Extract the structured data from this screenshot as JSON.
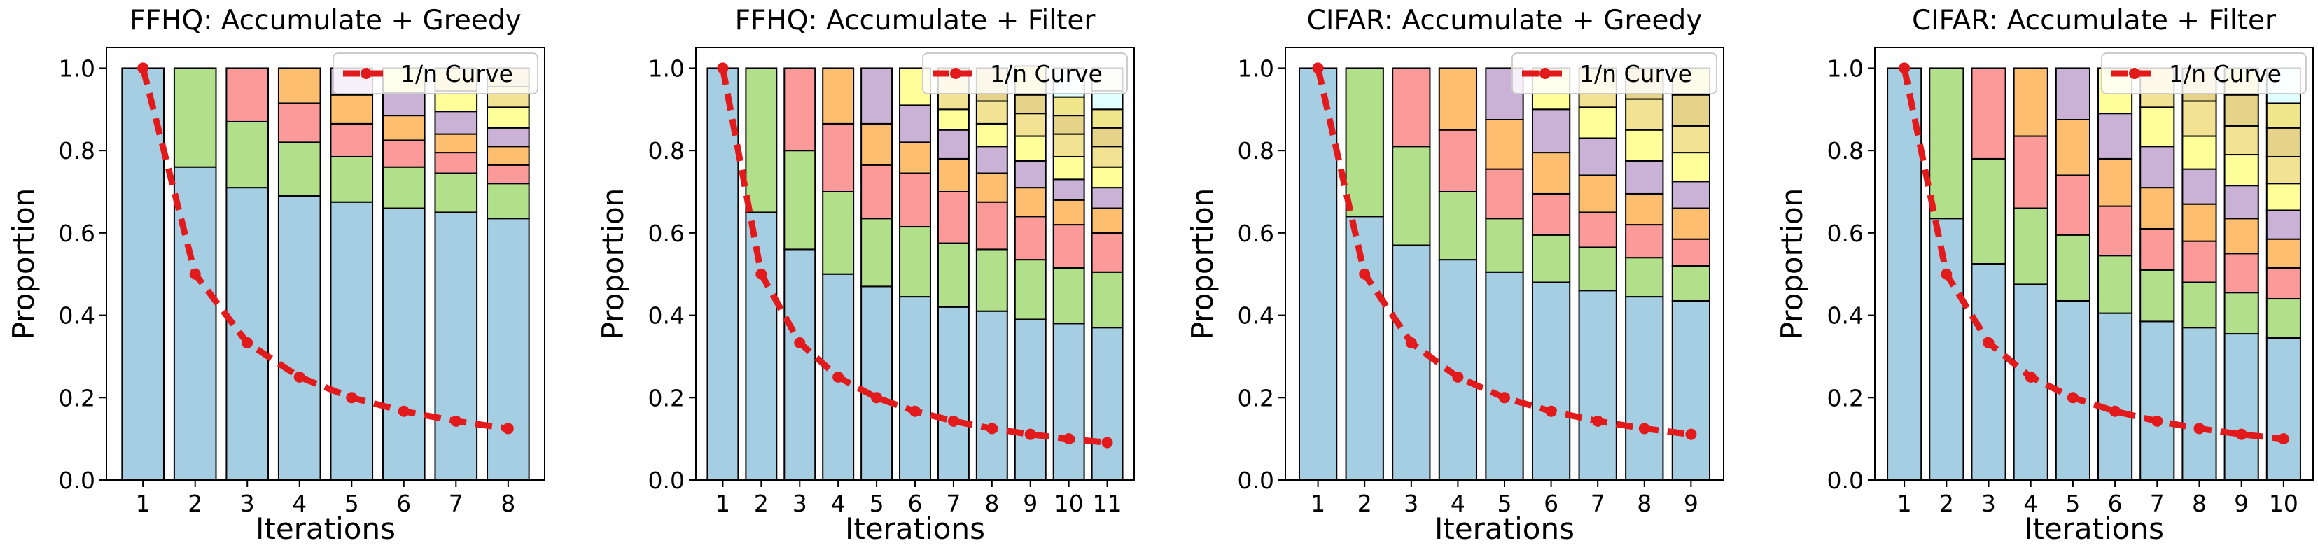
{
  "figure": {
    "palette": [
      "#a6cee3",
      "#b2df8a",
      "#fb9a99",
      "#fdbf6f",
      "#cab2d6",
      "#ffff99",
      "#f2e394",
      "#e6d38a",
      "#f0e68c",
      "#e0ffff",
      "#f5f5dc"
    ],
    "curve_color": "#e31a1c"
  },
  "chart_data": [
    {
      "type": "stacked-bar",
      "title": "FFHQ: Accumulate + Greedy",
      "xlabel": "Iterations",
      "ylabel": "Proportion",
      "ylim": [
        0,
        1.05
      ],
      "yticks": [
        "0.0",
        "0.2",
        "0.4",
        "0.6",
        "0.8",
        "1.0"
      ],
      "categories": [
        "1",
        "2",
        "3",
        "4",
        "5",
        "6",
        "7",
        "8"
      ],
      "stacks": [
        [
          1.0
        ],
        [
          0.76,
          0.24
        ],
        [
          0.71,
          0.16,
          0.13
        ],
        [
          0.69,
          0.13,
          0.095,
          0.085
        ],
        [
          0.675,
          0.11,
          0.08,
          0.07,
          0.065
        ],
        [
          0.66,
          0.1,
          0.065,
          0.06,
          0.055,
          0.06
        ],
        [
          0.65,
          0.095,
          0.05,
          0.045,
          0.055,
          0.05,
          0.055
        ],
        [
          0.635,
          0.085,
          0.045,
          0.045,
          0.045,
          0.05,
          0.05,
          0.045
        ]
      ],
      "curve": {
        "name": "1/n Curve",
        "values": [
          1.0,
          0.5,
          0.333,
          0.25,
          0.2,
          0.167,
          0.143,
          0.125
        ]
      },
      "legend": "top-right"
    },
    {
      "type": "stacked-bar",
      "title": "FFHQ: Accumulate + Filter",
      "xlabel": "Iterations",
      "ylabel": "Proportion",
      "ylim": [
        0,
        1.05
      ],
      "yticks": [
        "0.0",
        "0.2",
        "0.4",
        "0.6",
        "0.8",
        "1.0"
      ],
      "categories": [
        "1",
        "2",
        "3",
        "4",
        "5",
        "6",
        "7",
        "8",
        "9",
        "10",
        "11"
      ],
      "stacks": [
        [
          1.0
        ],
        [
          0.65,
          0.35
        ],
        [
          0.56,
          0.24,
          0.2
        ],
        [
          0.5,
          0.2,
          0.165,
          0.135
        ],
        [
          0.47,
          0.165,
          0.13,
          0.1,
          0.135
        ],
        [
          0.445,
          0.17,
          0.13,
          0.075,
          0.09,
          0.09
        ],
        [
          0.42,
          0.155,
          0.125,
          0.08,
          0.07,
          0.05,
          0.1
        ],
        [
          0.41,
          0.15,
          0.115,
          0.07,
          0.065,
          0.055,
          0.055,
          0.08
        ],
        [
          0.39,
          0.145,
          0.105,
          0.07,
          0.065,
          0.06,
          0.055,
          0.045,
          0.07
        ],
        [
          0.38,
          0.135,
          0.105,
          0.06,
          0.05,
          0.055,
          0.055,
          0.045,
          0.045,
          0.07
        ],
        [
          0.37,
          0.135,
          0.095,
          0.06,
          0.05,
          0.05,
          0.05,
          0.045,
          0.045,
          0.045,
          0.055
        ]
      ],
      "curve": {
        "name": "1/n Curve",
        "values": [
          1.0,
          0.5,
          0.333,
          0.25,
          0.2,
          0.167,
          0.143,
          0.125,
          0.111,
          0.1,
          0.091
        ]
      },
      "legend": "top-right"
    },
    {
      "type": "stacked-bar",
      "title": "CIFAR: Accumulate + Greedy",
      "xlabel": "Iterations",
      "ylabel": "Proportion",
      "ylim": [
        0,
        1.05
      ],
      "yticks": [
        "0.0",
        "0.2",
        "0.4",
        "0.6",
        "0.8",
        "1.0"
      ],
      "categories": [
        "1",
        "2",
        "3",
        "4",
        "5",
        "6",
        "7",
        "8",
        "9"
      ],
      "stacks": [
        [
          1.0
        ],
        [
          0.64,
          0.36
        ],
        [
          0.57,
          0.24,
          0.19
        ],
        [
          0.535,
          0.165,
          0.15,
          0.15
        ],
        [
          0.505,
          0.13,
          0.12,
          0.12,
          0.125
        ],
        [
          0.48,
          0.115,
          0.1,
          0.1,
          0.105,
          0.1
        ],
        [
          0.46,
          0.105,
          0.085,
          0.09,
          0.09,
          0.075,
          0.095
        ],
        [
          0.445,
          0.095,
          0.08,
          0.075,
          0.08,
          0.075,
          0.075,
          0.075
        ],
        [
          0.435,
          0.085,
          0.065,
          0.075,
          0.065,
          0.07,
          0.065,
          0.075,
          0.065
        ]
      ],
      "curve": {
        "name": "1/n Curve",
        "values": [
          1.0,
          0.5,
          0.333,
          0.25,
          0.2,
          0.167,
          0.143,
          0.125,
          0.111
        ]
      },
      "legend": "top-right"
    },
    {
      "type": "stacked-bar",
      "title": "CIFAR: Accumulate + Filter",
      "xlabel": "Iterations",
      "ylabel": "Proportion",
      "ylim": [
        0,
        1.05
      ],
      "yticks": [
        "0.0",
        "0.2",
        "0.4",
        "0.6",
        "0.8",
        "1.0"
      ],
      "categories": [
        "1",
        "2",
        "3",
        "4",
        "5",
        "6",
        "7",
        "8",
        "9",
        "10"
      ],
      "stacks": [
        [
          1.0
        ],
        [
          0.635,
          0.365
        ],
        [
          0.525,
          0.255,
          0.22
        ],
        [
          0.475,
          0.185,
          0.175,
          0.165
        ],
        [
          0.435,
          0.16,
          0.145,
          0.135,
          0.125
        ],
        [
          0.405,
          0.14,
          0.12,
          0.115,
          0.11,
          0.11
        ],
        [
          0.385,
          0.125,
          0.1,
          0.1,
          0.1,
          0.095,
          0.095
        ],
        [
          0.37,
          0.11,
          0.1,
          0.09,
          0.085,
          0.08,
          0.085,
          0.08
        ],
        [
          0.355,
          0.1,
          0.095,
          0.085,
          0.08,
          0.075,
          0.07,
          0.075,
          0.065
        ],
        [
          0.345,
          0.095,
          0.075,
          0.07,
          0.07,
          0.065,
          0.065,
          0.07,
          0.06,
          0.085
        ]
      ],
      "curve": {
        "name": "1/n Curve",
        "values": [
          1.0,
          0.5,
          0.333,
          0.25,
          0.2,
          0.167,
          0.143,
          0.125,
          0.111,
          0.1
        ]
      },
      "legend": "top-right"
    }
  ]
}
